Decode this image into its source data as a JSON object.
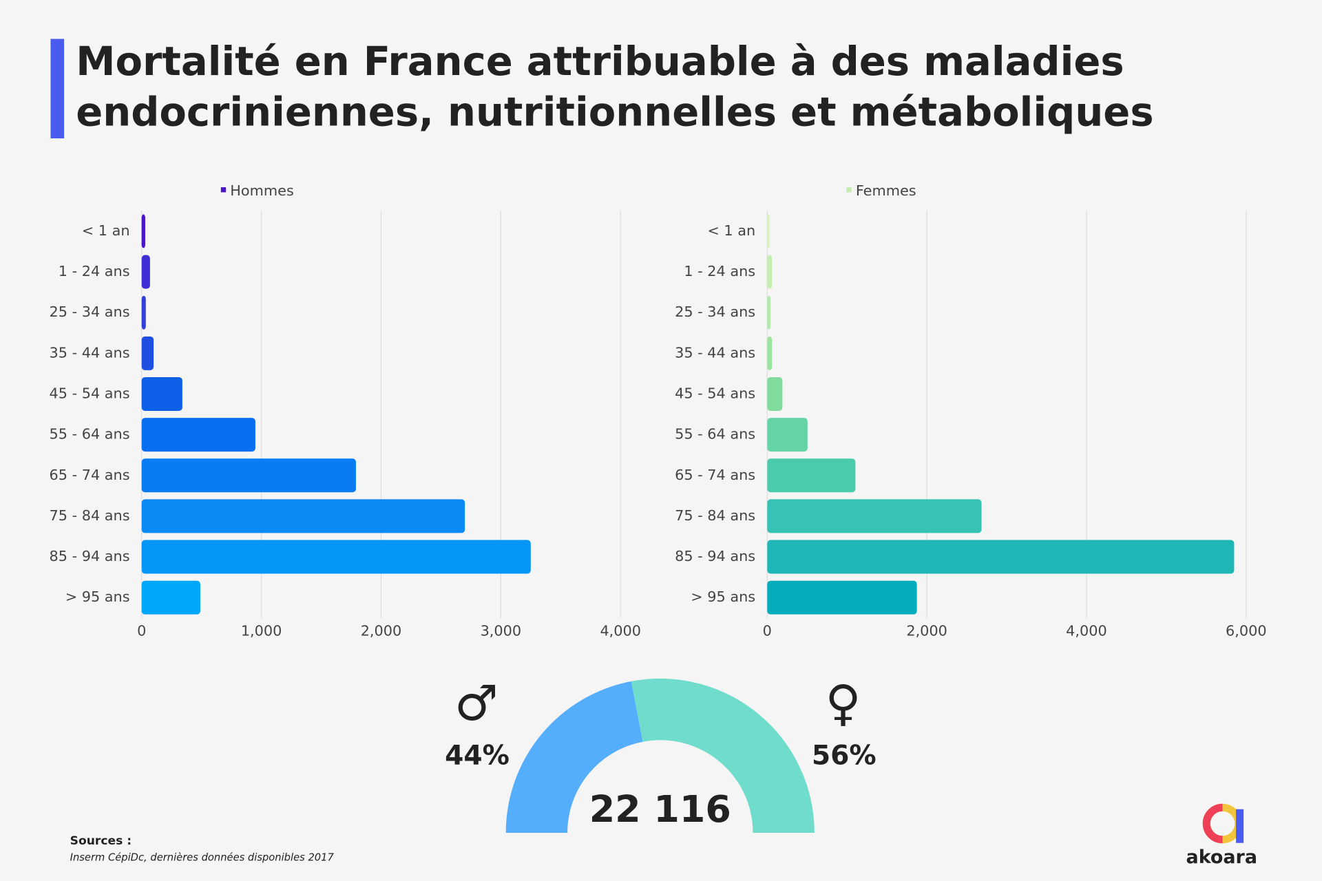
{
  "title": [
    "Mortalité en France attribuable à des maladies",
    "endocriniennes, nutritionnelles et métaboliques"
  ],
  "sources_label": "Sources :",
  "sources": "Inserm CépiDc, dernières données disponibles 2017",
  "logo": "akoara",
  "chart_data": [
    {
      "type": "bar",
      "orientation": "horizontal",
      "categories": [
        "< 1 an",
        "1  - 24 ans",
        "25 - 34 ans",
        "35 - 44 ans",
        "45 - 54 ans",
        "55 - 64 ans",
        "65 - 74 ans",
        "75 - 84 ans",
        "85 - 94 ans",
        "> 95 ans"
      ],
      "series": [
        {
          "name": "Hommes",
          "color": "#4a14c8",
          "values": [
            30,
            70,
            35,
            100,
            340,
            950,
            1790,
            2700,
            3250,
            490
          ],
          "colors": [
            "#4a14c8",
            "#3d2fd6",
            "#3340d8",
            "#1f4fe0",
            "#0d5fe8",
            "#0a6ef0",
            "#0a7cf3",
            "#0a8af5",
            "#0696f7",
            "#00a8fc"
          ]
        }
      ],
      "xlim": [
        0,
        4000
      ],
      "xticks": [
        0,
        {
          "value": 1000,
          "label": "1,000"
        },
        {
          "value": 2000,
          "label": "2,000"
        },
        {
          "value": 3000,
          "label": "3,000"
        },
        {
          "value": 4000,
          "label": "4,000"
        }
      ],
      "grid": true
    },
    {
      "type": "bar",
      "orientation": "horizontal",
      "categories": [
        "< 1 an",
        "1  - 24 ans",
        "25 - 34 ans",
        "35 - 44 ans",
        "45 - 54 ans",
        "55 - 64 ans",
        "65 - 74 ans",
        "75 - 84 ans",
        "85 - 94 ans",
        "> 95 ans"
      ],
      "series": [
        {
          "name": "Femmes",
          "color": "#c5eeb0",
          "values": [
            30,
            60,
            40,
            60,
            190,
            505,
            1105,
            2685,
            5850,
            1875
          ],
          "colors": [
            "#d8f5c0",
            "#c5efb0",
            "#b0eaa8",
            "#9be5a0",
            "#80dc9c",
            "#64d4a4",
            "#4ccbac",
            "#36c2b4",
            "#1fb6b6",
            "#04adbb"
          ]
        }
      ],
      "xlim": [
        0,
        6000
      ],
      "xticks": [
        0,
        {
          "value": 2000,
          "label": "2,000"
        },
        {
          "value": 4000,
          "label": "4,000"
        },
        {
          "value": 6000,
          "label": "6,000"
        }
      ],
      "grid": true
    },
    {
      "type": "donut",
      "categories": [
        "♂",
        "♀"
      ],
      "values": [
        44,
        56
      ],
      "value_labels": [
        "44%",
        "56%"
      ],
      "colors": [
        "#55aefc",
        "#6fdccc"
      ],
      "center_label": "22 116"
    }
  ]
}
